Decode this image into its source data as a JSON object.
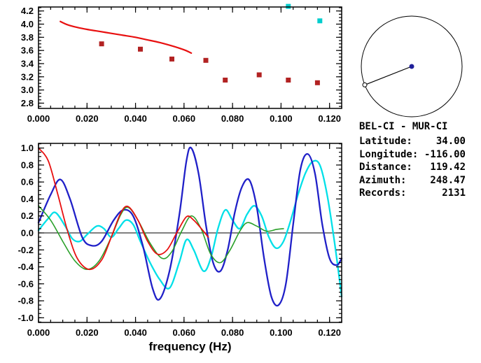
{
  "window": {
    "background": "#ffffff",
    "axis_color": "#000000"
  },
  "info_panel": {
    "title": "BEL-CI - MUR-CI",
    "rows": [
      {
        "label": "Latitude:",
        "value": "34.00"
      },
      {
        "label": "Longitude:",
        "value": "-116.00"
      },
      {
        "label": "Distance:",
        "value": "119.42"
      },
      {
        "label": "Azimuth:",
        "value": "248.47"
      },
      {
        "label": "Records:",
        "value": "2131"
      }
    ]
  },
  "compass": {
    "azimuth_deg": 248.47,
    "circle_color": "#000000",
    "line_color": "#000000",
    "center_marker_color": "#20209a",
    "end_marker_fill": "#ffffff"
  },
  "chart_data": [
    {
      "id": "top",
      "type": "line",
      "title": "",
      "xlabel": "",
      "ylabel": "",
      "xlim": [
        0,
        0.125
      ],
      "ylim": [
        2.72,
        4.26
      ],
      "xtick_values": [
        0,
        0.02,
        0.04,
        0.06,
        0.08,
        0.1,
        0.12
      ],
      "xtick_labels": [
        "0.000",
        "0.020",
        "0.040",
        "0.060",
        "0.080",
        "0.100",
        "0.120"
      ],
      "ytick_values": [
        2.8,
        3.0,
        3.2,
        3.4,
        3.6,
        3.8,
        4.0,
        4.2
      ],
      "ytick_labels": [
        "2.8",
        "3.0",
        "3.2",
        "3.4",
        "3.6",
        "3.8",
        "4.0",
        "4.2"
      ],
      "x_minor_step": 0.005,
      "y_minor_step": 0.05,
      "zero_line": false,
      "series": [
        {
          "name": "reference-dispersion-curve",
          "type": "line",
          "color": "#e81010",
          "width": 2.2,
          "x": [
            0.009,
            0.012,
            0.016,
            0.02,
            0.025,
            0.03,
            0.035,
            0.04,
            0.045,
            0.05,
            0.055,
            0.06,
            0.063
          ],
          "y": [
            4.04,
            3.99,
            3.95,
            3.92,
            3.89,
            3.86,
            3.83,
            3.8,
            3.76,
            3.72,
            3.67,
            3.61,
            3.56
          ]
        },
        {
          "name": "picked-dispersion-point",
          "type": "scatter",
          "color": "#b22222",
          "size": 7,
          "x": [
            0.026,
            0.042,
            0.055,
            0.069,
            0.077,
            0.091,
            0.103,
            0.115
          ],
          "y": [
            3.7,
            3.62,
            3.47,
            3.45,
            3.15,
            3.23,
            3.15,
            3.11
          ]
        },
        {
          "name": "secondary-dispersion-point",
          "type": "scatter",
          "color": "#00cdcd",
          "size": 7,
          "x": [
            0.103,
            0.116
          ],
          "y": [
            4.27,
            4.05
          ]
        }
      ]
    },
    {
      "id": "bottom",
      "type": "line",
      "title": "",
      "xlabel": "frequency (Hz)",
      "ylabel": "",
      "xlim": [
        0,
        0.125
      ],
      "ylim": [
        -1.055,
        1.055
      ],
      "xtick_values": [
        0,
        0.02,
        0.04,
        0.06,
        0.08,
        0.1,
        0.12
      ],
      "xtick_labels": [
        "0.000",
        "0.020",
        "0.040",
        "0.060",
        "0.080",
        "0.100",
        "0.120"
      ],
      "ytick_values": [
        1.0,
        0.8,
        0.6,
        0.4,
        0.2,
        0.0,
        -0.2,
        -0.4,
        -0.6,
        -0.8,
        -1.0
      ],
      "ytick_labels": [
        "1.0",
        "0.8",
        "0.6",
        "0.4",
        "0.2",
        "0.0",
        "-0.2",
        "-0.4",
        "-0.6",
        "-0.8",
        "-1.0"
      ],
      "x_minor_step": 0.005,
      "y_minor_step": 0.05,
      "zero_line": true,
      "series": [
        {
          "name": "correlation-trace-cyan",
          "type": "line",
          "color": "#00e0e8",
          "width": 2.3,
          "x": [
            0.0,
            0.004,
            0.007,
            0.011,
            0.014,
            0.017,
            0.02,
            0.024,
            0.027,
            0.03,
            0.033,
            0.036,
            0.039,
            0.042,
            0.046,
            0.05,
            0.054,
            0.058,
            0.061,
            0.064,
            0.068,
            0.071,
            0.074,
            0.077,
            0.08,
            0.083,
            0.086,
            0.089,
            0.092,
            0.095,
            0.098,
            0.101,
            0.104,
            0.107,
            0.11,
            0.113,
            0.116,
            0.119,
            0.122,
            0.125
          ],
          "y": [
            0.03,
            0.17,
            0.24,
            0.08,
            -0.07,
            -0.1,
            -0.02,
            0.08,
            0.05,
            -0.05,
            0.05,
            0.15,
            0.1,
            -0.1,
            -0.35,
            -0.55,
            -0.65,
            -0.35,
            -0.08,
            -0.2,
            -0.45,
            -0.3,
            0.05,
            0.27,
            0.15,
            0.05,
            0.22,
            0.32,
            0.2,
            -0.05,
            -0.18,
            -0.1,
            0.15,
            0.45,
            0.7,
            0.84,
            0.8,
            0.45,
            -0.1,
            -0.75
          ]
        },
        {
          "name": "correlation-trace-blue",
          "type": "line",
          "color": "#2020c8",
          "width": 2.3,
          "x": [
            0.0,
            0.005,
            0.009,
            0.013,
            0.018,
            0.022,
            0.026,
            0.031,
            0.035,
            0.039,
            0.043,
            0.047,
            0.05,
            0.054,
            0.058,
            0.061,
            0.063,
            0.066,
            0.069,
            0.072,
            0.075,
            0.078,
            0.081,
            0.084,
            0.087,
            0.09,
            0.093,
            0.096,
            0.099,
            0.102,
            0.105,
            0.108,
            0.111,
            0.114,
            0.117,
            0.12,
            0.123,
            0.125
          ],
          "y": [
            0.12,
            0.45,
            0.63,
            0.4,
            -0.05,
            -0.15,
            -0.1,
            0.15,
            0.27,
            0.2,
            -0.15,
            -0.65,
            -0.78,
            -0.45,
            0.2,
            0.85,
            1.0,
            0.7,
            0.1,
            -0.35,
            -0.45,
            -0.2,
            0.25,
            0.55,
            0.62,
            0.3,
            -0.3,
            -0.75,
            -0.85,
            -0.6,
            0.1,
            0.75,
            0.93,
            0.7,
            0.1,
            -0.3,
            -0.38,
            -0.3
          ]
        },
        {
          "name": "correlation-trace-green",
          "type": "line",
          "color": "#2aa02a",
          "width": 1.6,
          "x": [
            0.0,
            0.005,
            0.01,
            0.015,
            0.02,
            0.025,
            0.03,
            0.034,
            0.037,
            0.041,
            0.046,
            0.051,
            0.055,
            0.059,
            0.063,
            0.067,
            0.071,
            0.075,
            0.079,
            0.083,
            0.086,
            0.09,
            0.094,
            0.098,
            0.101
          ],
          "y": [
            0.32,
            0.15,
            -0.1,
            -0.33,
            -0.43,
            -0.33,
            -0.05,
            0.22,
            0.3,
            0.15,
            -0.12,
            -0.3,
            -0.22,
            0.02,
            0.2,
            0.05,
            -0.25,
            -0.35,
            -0.2,
            0.02,
            0.12,
            0.08,
            0.02,
            0.04,
            0.05
          ]
        },
        {
          "name": "correlation-trace-red",
          "type": "line",
          "color": "#e81010",
          "width": 1.8,
          "x": [
            0.0,
            0.004,
            0.008,
            0.012,
            0.016,
            0.021,
            0.026,
            0.03,
            0.034,
            0.037,
            0.041,
            0.045,
            0.049,
            0.053,
            0.057,
            0.061,
            0.064,
            0.068,
            0.07
          ],
          "y": [
            1.0,
            0.85,
            0.45,
            0.02,
            -0.3,
            -0.43,
            -0.32,
            -0.05,
            0.24,
            0.31,
            0.15,
            -0.1,
            -0.25,
            -0.2,
            0.0,
            0.19,
            0.15,
            0.02,
            -0.05
          ]
        }
      ]
    }
  ]
}
